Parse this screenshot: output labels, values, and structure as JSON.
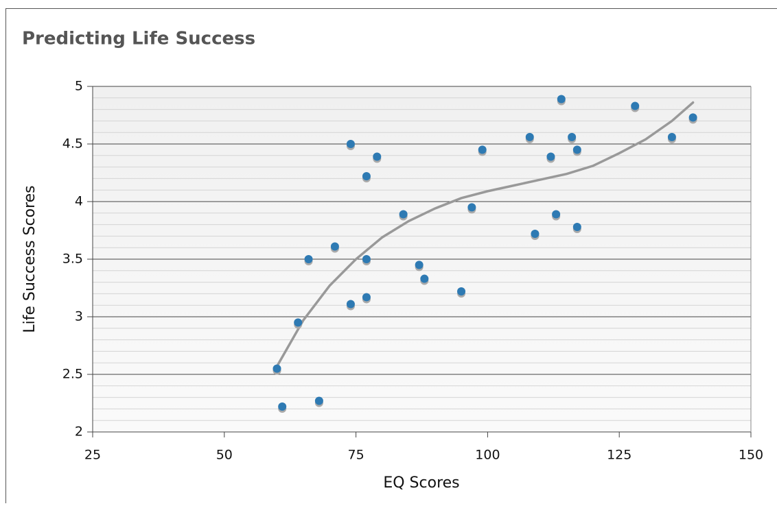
{
  "chart_data": {
    "type": "scatter",
    "title": "Predicting Life Success",
    "xlabel": "EQ Scores",
    "ylabel": "Life Success Scores",
    "xlim": [
      25,
      150
    ],
    "xticks": [
      25,
      50,
      75,
      100,
      125,
      150
    ],
    "ylim": [
      2,
      5
    ],
    "yticks": [
      2,
      2.5,
      3,
      3.5,
      4,
      4.5,
      5
    ],
    "yminorticks": [
      2.1,
      2.2,
      2.3,
      2.4,
      2.6,
      2.7,
      2.8,
      2.9,
      3.1,
      3.2,
      3.3,
      3.4,
      3.6,
      3.7,
      3.8,
      3.9,
      4.1,
      4.2,
      4.3,
      4.4,
      4.6,
      4.7,
      4.8,
      4.9
    ],
    "grid": true,
    "series": [
      {
        "color": "#2e7ab3",
        "x": [
          60,
          61,
          68,
          64,
          66,
          71,
          74,
          74,
          77,
          77,
          77,
          79,
          84,
          87,
          88,
          95,
          97,
          99,
          108,
          109,
          112,
          113,
          114,
          116,
          117,
          117,
          128,
          135,
          139
        ],
        "values": [
          2.55,
          2.22,
          2.27,
          2.95,
          3.5,
          3.61,
          4.5,
          3.11,
          4.22,
          3.5,
          3.17,
          4.39,
          3.89,
          3.45,
          3.33,
          3.22,
          3.95,
          4.45,
          4.56,
          3.72,
          4.39,
          3.89,
          4.89,
          4.56,
          4.45,
          3.78,
          4.83,
          4.56,
          4.73
        ]
      },
      {
        "type": "line",
        "color": "#999999",
        "x": [
          60,
          65,
          70,
          75,
          80,
          85,
          90,
          95,
          100,
          105,
          110,
          115,
          120,
          125,
          130,
          135,
          139
        ],
        "values": [
          2.57,
          2.97,
          3.27,
          3.5,
          3.69,
          3.83,
          3.94,
          4.03,
          4.09,
          4.14,
          4.19,
          4.24,
          4.31,
          4.42,
          4.54,
          4.7,
          4.86
        ]
      }
    ]
  }
}
